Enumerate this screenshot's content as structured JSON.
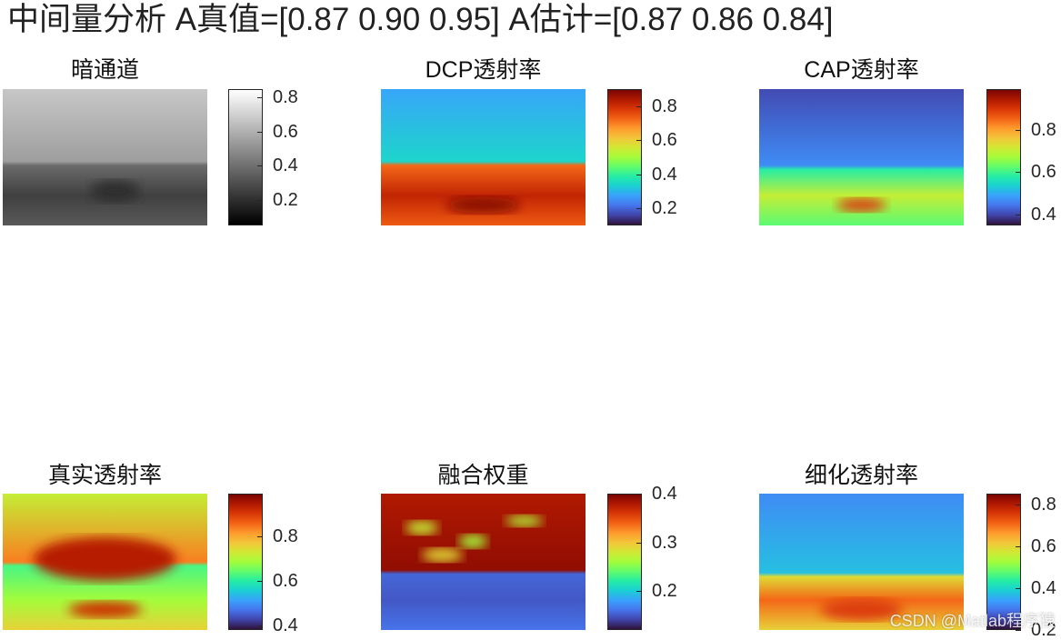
{
  "title": "中间量分析  A真值=[0.87 0.90 0.95]  A估计=[0.87 0.86 0.84]",
  "watermark": "CSDN @Matlab程序猿",
  "chart_data": [
    {
      "type": "heatmap",
      "title": "暗通道",
      "colormap": "gray",
      "colorbar": {
        "ticks": [
          0.2,
          0.4,
          0.6,
          0.8
        ],
        "tick_labels": [
          "0.2",
          "0.4",
          "0.6",
          "0.8"
        ],
        "range": [
          0.05,
          0.85
        ]
      }
    },
    {
      "type": "heatmap",
      "title": "DCP透射率",
      "colormap": "turbo",
      "colorbar": {
        "ticks": [
          0.2,
          0.4,
          0.6,
          0.8
        ],
        "tick_labels": [
          "0.2",
          "0.4",
          "0.6",
          "0.8"
        ],
        "range": [
          0.1,
          0.9
        ]
      }
    },
    {
      "type": "heatmap",
      "title": "CAP透射率",
      "colormap": "turbo",
      "colorbar": {
        "ticks": [
          0.4,
          0.6,
          0.8
        ],
        "tick_labels": [
          "0.4",
          "0.6",
          "0.8"
        ],
        "range": [
          0.35,
          0.99
        ]
      }
    },
    {
      "type": "heatmap",
      "title": "真实透射率",
      "colormap": "turbo",
      "colorbar": {
        "ticks": [
          0.4,
          0.6,
          0.8
        ],
        "tick_labels": [
          "0.4",
          "0.6",
          "0.8"
        ],
        "range": [
          0.38,
          0.99
        ]
      }
    },
    {
      "type": "heatmap",
      "title": "融合权重",
      "colormap": "turbo",
      "colorbar": {
        "ticks": [
          0.2,
          0.3,
          0.4
        ],
        "tick_labels": [
          "0.2",
          "0.3",
          "0.4"
        ],
        "range": [
          0.12,
          0.4
        ]
      }
    },
    {
      "type": "heatmap",
      "title": "细化透射率",
      "colormap": "turbo",
      "colorbar": {
        "ticks": [
          0.2,
          0.4,
          0.6,
          0.8
        ],
        "tick_labels": [
          "0.2",
          "0.4",
          "0.6",
          "0.8"
        ],
        "range": [
          0.2,
          0.85
        ]
      }
    }
  ]
}
